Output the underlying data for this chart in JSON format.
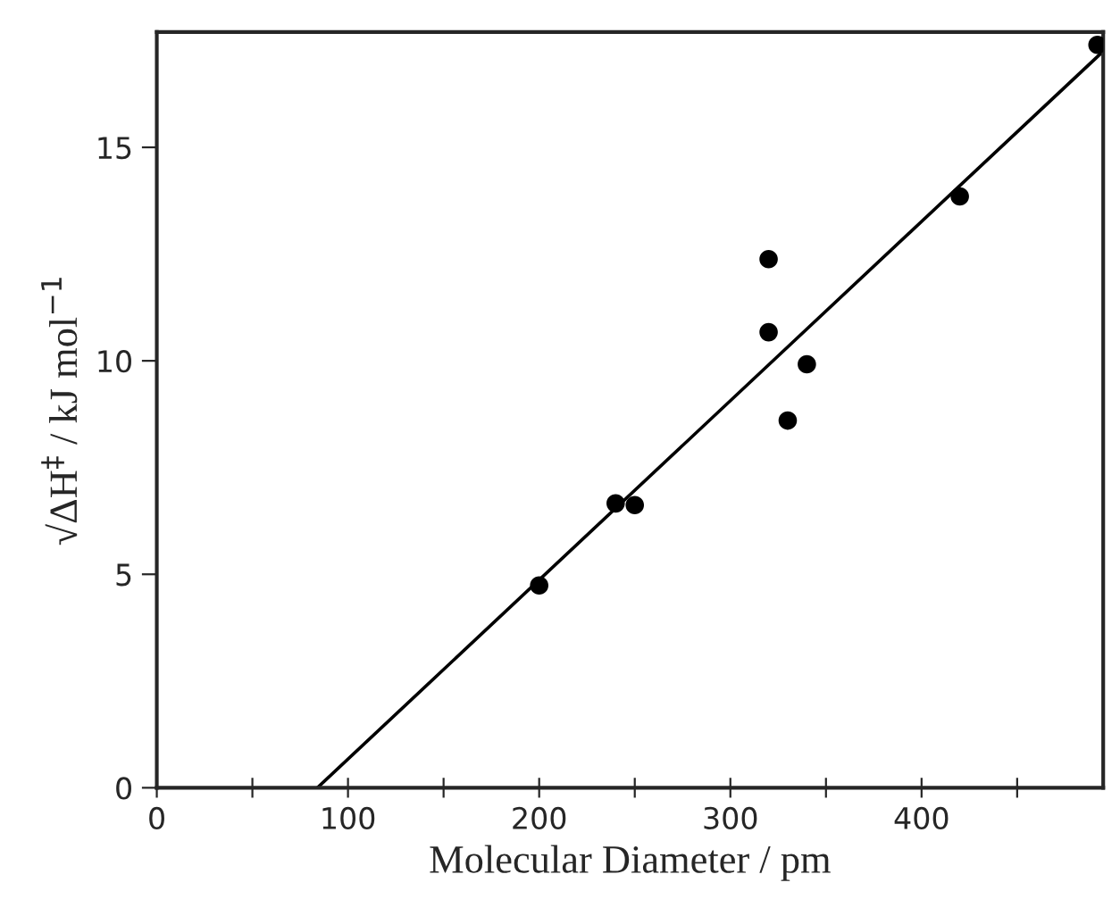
{
  "chart_data": {
    "type": "scatter",
    "xlabel": "Molecular Diameter / pm",
    "ylabel": "√ΔH$^{‡}$ / kJ mol$^{−1}$",
    "xlim": [
      0,
      495
    ],
    "ylim": [
      0,
      17.7
    ],
    "xticks": [
      0,
      {
        "value": 50,
        "label": null
      },
      100,
      {
        "value": 150,
        "label": null
      },
      200,
      {
        "value": 250,
        "label": null
      },
      300,
      {
        "value": 350,
        "label": null
      },
      400,
      {
        "value": 450,
        "label": null
      }
    ],
    "yticks": [
      0,
      5,
      10,
      15
    ],
    "grid": false,
    "marker": "circle",
    "series": [
      {
        "color": "#000000",
        "x": [
          200,
          240,
          250,
          320,
          320,
          340,
          330,
          420,
          492
        ],
        "values": [
          4.74,
          6.66,
          6.62,
          12.38,
          10.67,
          9.92,
          8.6,
          13.85,
          17.4
        ]
      },
      {
        "type": "line",
        "color": "#000000",
        "x": [
          84,
          495
        ],
        "values": [
          0,
          17.25
        ],
        "marker": "none",
        "line_style": "solid"
      }
    ]
  }
}
